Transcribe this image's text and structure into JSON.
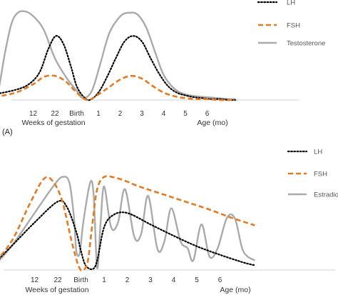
{
  "chart_data": [
    {
      "type": "line",
      "panel_label": "",
      "categories": [
        "",
        "12",
        "22",
        "Birth",
        "1",
        "2",
        "3",
        "4",
        "5",
        "6"
      ],
      "xlabel_left": "Weeks of gestation",
      "xlabel_right": "Age (mo)",
      "legend_position": "top-right",
      "grid": false,
      "series": [
        {
          "name": "LH",
          "style": "dotted",
          "color": "#000000",
          "x": [
            -0.8,
            0.2,
            0.8,
            1.3,
            1.7,
            2.05,
            2.4,
            2.75,
            3.0,
            3.3,
            3.6,
            4.0,
            4.4,
            4.8,
            5.2,
            5.6,
            6.0,
            6.4,
            6.8,
            7.2,
            7.6,
            8.0,
            8.4,
            8.8,
            9.2,
            9.6,
            10.0,
            10.3
          ],
          "y": [
            0.06,
            0.11,
            0.17,
            0.3,
            0.55,
            0.69,
            0.6,
            0.35,
            0.15,
            0.04,
            0.0,
            0.08,
            0.25,
            0.45,
            0.63,
            0.69,
            0.63,
            0.45,
            0.28,
            0.15,
            0.08,
            0.05,
            0.03,
            0.02,
            0.01,
            0.01,
            0.0,
            0.0
          ]
        },
        {
          "name": "FSH",
          "style": "dashed",
          "color": "#E47A22",
          "x": [
            -0.8,
            0.2,
            1.0,
            1.5,
            2.0,
            2.5,
            3.0,
            3.5,
            4.0,
            4.5,
            5.0,
            5.5,
            6.0,
            6.5,
            7.0,
            7.5,
            8.0,
            8.5,
            9.0,
            9.5,
            10.0,
            10.3
          ],
          "y": [
            0.03,
            0.08,
            0.17,
            0.25,
            0.26,
            0.2,
            0.08,
            0.0,
            0.06,
            0.14,
            0.22,
            0.26,
            0.23,
            0.15,
            0.08,
            0.04,
            0.02,
            0.01,
            0.01,
            0.0,
            0.0,
            0.0
          ]
        },
        {
          "name": "Testosterone",
          "style": "solid",
          "color": "#AAAAAA",
          "x": [
            -0.8,
            -0.6,
            -0.3,
            0.0,
            0.3,
            0.7,
            1.1,
            1.5,
            2.0,
            2.5,
            3.0,
            3.3,
            3.7,
            4.1,
            4.5,
            5.0,
            5.4,
            5.8,
            6.2,
            6.6,
            7.0,
            7.5,
            8.0,
            8.5,
            9.0,
            9.5,
            10.0,
            10.3
          ],
          "y": [
            0.02,
            0.1,
            0.5,
            0.82,
            0.94,
            0.95,
            0.88,
            0.75,
            0.45,
            0.25,
            0.1,
            0.02,
            0.1,
            0.4,
            0.72,
            0.9,
            0.94,
            0.92,
            0.78,
            0.52,
            0.27,
            0.12,
            0.06,
            0.04,
            0.03,
            0.02,
            0.01,
            0.01
          ]
        }
      ]
    },
    {
      "type": "line",
      "panel_label": "(A)",
      "categories": [
        "",
        "12",
        "22",
        "Birth",
        "1",
        "2",
        "3",
        "4",
        "5",
        "6"
      ],
      "xlabel_left": "Weeks of gestation",
      "xlabel_right": "Age (mo)",
      "legend_position": "top-right",
      "grid": false,
      "series": [
        {
          "name": "LH",
          "style": "dotted",
          "color": "#000000",
          "x": [
            -0.9,
            0.0,
            1.0,
            2.0,
            2.4,
            2.8,
            3.0,
            3.2,
            3.5,
            3.7,
            4.0,
            4.4,
            5.0,
            6.0,
            7.0,
            8.0,
            9.0,
            10.0,
            10.5
          ],
          "y": [
            0.03,
            0.25,
            0.5,
            0.72,
            0.66,
            0.4,
            0.2,
            0.05,
            0.01,
            0.1,
            0.45,
            0.58,
            0.6,
            0.48,
            0.36,
            0.25,
            0.16,
            0.08,
            0.05
          ]
        },
        {
          "name": "FSH",
          "style": "dashed",
          "color": "#E47A22",
          "x": [
            -0.9,
            0.0,
            0.8,
            1.4,
            1.8,
            2.2,
            2.6,
            2.9,
            3.1,
            3.3,
            3.5,
            3.7,
            4.0,
            4.5,
            5.0,
            5.5,
            6.5,
            7.5,
            8.5,
            9.5,
            10.5
          ],
          "y": [
            0.03,
            0.3,
            0.7,
            0.96,
            0.93,
            0.72,
            0.3,
            0.04,
            0.0,
            0.1,
            0.5,
            0.85,
            0.98,
            0.97,
            0.93,
            0.88,
            0.8,
            0.72,
            0.64,
            0.55,
            0.47
          ]
        },
        {
          "name": "Estradiol",
          "style": "solid",
          "color": "#AAAAAA",
          "x": [
            -0.9,
            0.0,
            1.0,
            1.8,
            2.2,
            2.5,
            2.7,
            2.8,
            2.95,
            3.1,
            3.4,
            3.55,
            3.7,
            3.85,
            4.0,
            4.3,
            4.6,
            4.9,
            5.3,
            5.6,
            5.9,
            6.3,
            6.6,
            6.9,
            7.3,
            7.6,
            7.85,
            8.2,
            8.55,
            8.9,
            9.3,
            9.65,
            10.0,
            10.5
          ],
          "y": [
            0.0,
            0.25,
            0.6,
            0.88,
            0.98,
            0.92,
            0.55,
            0.2,
            0.18,
            0.5,
            0.92,
            0.78,
            0.02,
            0.5,
            0.88,
            0.45,
            0.5,
            0.85,
            0.35,
            0.38,
            0.78,
            0.22,
            0.3,
            0.65,
            0.3,
            0.23,
            0.1,
            0.48,
            0.14,
            0.23,
            0.55,
            0.54,
            0.2,
            0.1
          ]
        }
      ]
    }
  ]
}
